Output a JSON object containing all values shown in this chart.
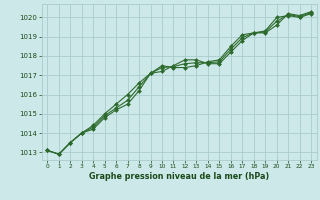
{
  "xlabel": "Graphe pression niveau de la mer (hPa)",
  "x": [
    0,
    1,
    2,
    3,
    4,
    5,
    6,
    7,
    8,
    9,
    10,
    11,
    12,
    13,
    14,
    15,
    16,
    17,
    18,
    19,
    20,
    21,
    22,
    23
  ],
  "line1": [
    1013.1,
    1012.9,
    1013.5,
    1014.0,
    1014.2,
    1014.8,
    1015.2,
    1015.5,
    1016.2,
    1017.1,
    1017.2,
    1017.5,
    1017.8,
    1017.8,
    1017.6,
    1017.6,
    1018.2,
    1018.8,
    1019.2,
    1019.2,
    1019.6,
    1020.2,
    1020.1,
    1020.3
  ],
  "line2": [
    1013.1,
    1012.9,
    1013.5,
    1014.0,
    1014.4,
    1015.0,
    1015.5,
    1016.0,
    1016.6,
    1017.1,
    1017.5,
    1017.4,
    1017.4,
    1017.5,
    1017.7,
    1017.8,
    1018.5,
    1019.1,
    1019.2,
    1019.3,
    1020.0,
    1020.1,
    1020.0,
    1020.2
  ],
  "line3": [
    1013.1,
    1012.9,
    1013.5,
    1014.0,
    1014.3,
    1014.9,
    1015.3,
    1015.7,
    1016.4,
    1017.1,
    1017.4,
    1017.45,
    1017.6,
    1017.65,
    1017.65,
    1017.7,
    1018.35,
    1018.95,
    1019.2,
    1019.25,
    1019.8,
    1020.15,
    1020.05,
    1020.25
  ],
  "line_color": "#2d6a2d",
  "marker_color": "#2d6a2d",
  "bg_color": "#cde8e8",
  "grid_color": "#aacccc",
  "axis_label_color": "#1a4a1a",
  "ylim_min": 1012.6,
  "ylim_max": 1020.7,
  "yticks": [
    1013,
    1014,
    1015,
    1016,
    1017,
    1018,
    1019,
    1020
  ],
  "xticks": [
    0,
    1,
    2,
    3,
    4,
    5,
    6,
    7,
    8,
    9,
    10,
    11,
    12,
    13,
    14,
    15,
    16,
    17,
    18,
    19,
    20,
    21,
    22,
    23
  ]
}
